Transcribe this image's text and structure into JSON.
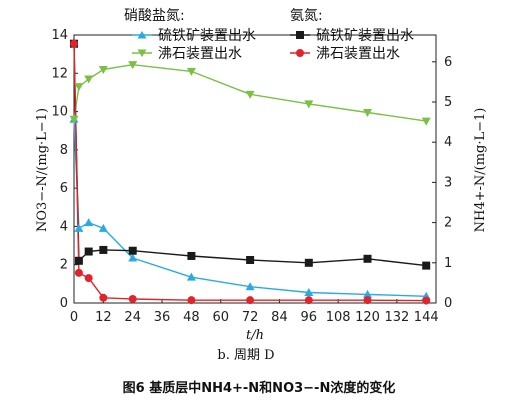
{
  "caption": "图6  基质层中NH4+-N和NO3−-N浓度的变化",
  "subcaption": "b. 周期 D",
  "legend": {
    "group_left": "硝酸盐氮:",
    "group_right": "氨氮:",
    "items": [
      "硫铁矿装置出水",
      "沸石装置出水",
      "硫铁矿装置出水",
      "沸石装置出水"
    ]
  },
  "chart_data": {
    "type": "line",
    "xlabel": "t/h",
    "ylabel_left": "NO3−-N/(mg·L−1)",
    "ylabel_right": "NH4+-N/(mg·L−1)",
    "xlim": [
      0,
      148
    ],
    "ylim_left": [
      0,
      14
    ],
    "ylim_right": [
      0,
      6.6667
    ],
    "x_ticks": [
      0,
      12,
      24,
      36,
      48,
      60,
      72,
      84,
      96,
      108,
      120,
      132,
      144
    ],
    "y_ticks_left": [
      0,
      2,
      4,
      6,
      8,
      10,
      12,
      14
    ],
    "y_ticks_right": [
      0,
      1,
      2,
      3,
      4,
      5,
      6
    ],
    "grid": false,
    "colors": {
      "pyrite_nitrate": "#29ABE2",
      "zeolite_nitrate": "#7AC143",
      "pyrite_ammonia": "#1a1a1a",
      "zeolite_ammonia": "#E2232A"
    },
    "series": [
      {
        "name": "硫铁矿装置出水",
        "group": "硝酸盐氮",
        "axis": "left",
        "marker": "triangle-up",
        "color": "#29ABE2",
        "x": [
          0,
          2,
          6,
          12,
          24,
          48,
          72,
          96,
          120,
          144
        ],
        "y": [
          9.6,
          3.9,
          4.2,
          3.9,
          2.35,
          1.35,
          0.85,
          0.55,
          0.45,
          0.35
        ]
      },
      {
        "name": "沸石装置出水",
        "group": "硝酸盐氮",
        "axis": "left",
        "marker": "triangle-down",
        "color": "#7AC143",
        "x": [
          0,
          2,
          6,
          12,
          24,
          48,
          72,
          96,
          120,
          144
        ],
        "y": [
          9.6,
          11.3,
          11.7,
          12.2,
          12.45,
          12.1,
          10.9,
          10.4,
          9.95,
          9.5
        ]
      },
      {
        "name": "硫铁矿装置出水",
        "group": "氨氮",
        "axis": "right",
        "marker": "square",
        "color": "#1a1a1a",
        "x": [
          0,
          2,
          6,
          12,
          24,
          48,
          72,
          96,
          120,
          144
        ],
        "y": [
          6.45,
          1.05,
          1.28,
          1.32,
          1.3,
          1.17,
          1.07,
          1.0,
          1.1,
          0.93
        ]
      },
      {
        "name": "沸石装置出水",
        "group": "氨氮",
        "axis": "right",
        "marker": "circle",
        "color": "#E2232A",
        "x": [
          0,
          2,
          6,
          12,
          24,
          48,
          72,
          96,
          120,
          144
        ],
        "y": [
          6.45,
          0.75,
          0.62,
          0.13,
          0.1,
          0.07,
          0.07,
          0.07,
          0.07,
          0.06
        ]
      }
    ]
  }
}
